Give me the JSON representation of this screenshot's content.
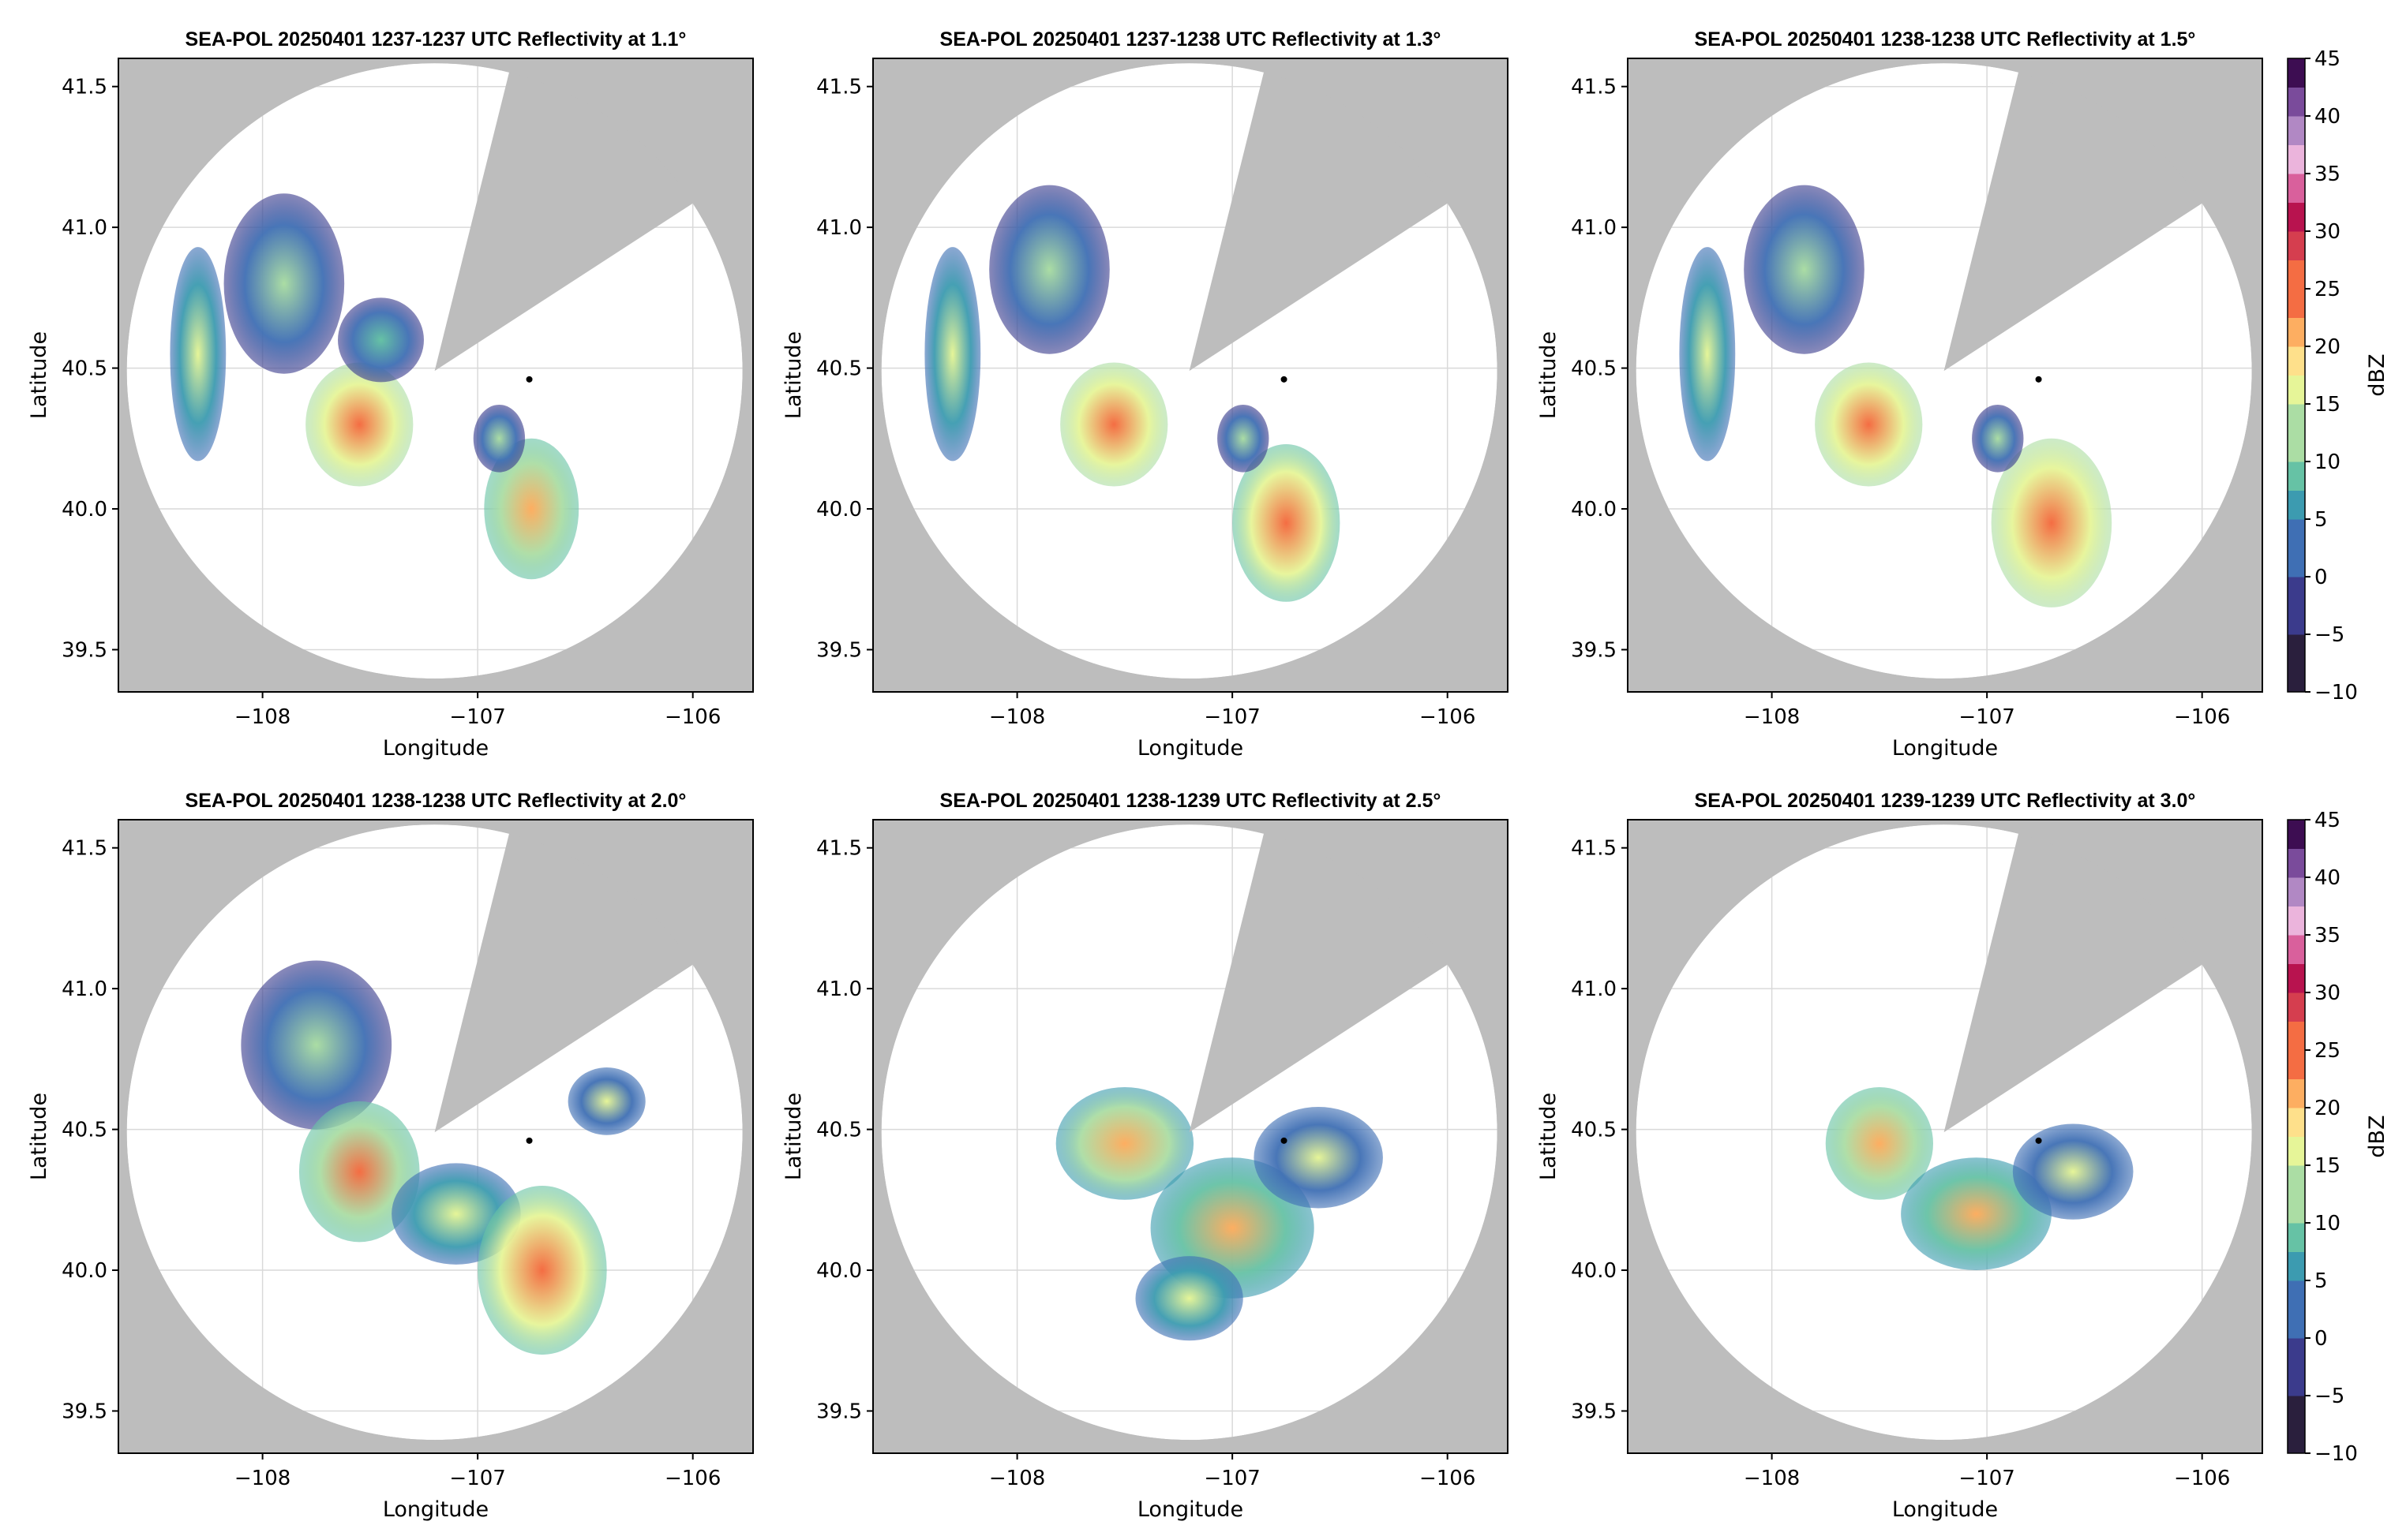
{
  "figure": {
    "colors": {
      "outside_coverage": "#bdbdbd",
      "coverage": "#ffffff",
      "grid": "#d9d9d9",
      "frame": "#000000",
      "radar_marker": "#000000"
    },
    "colormap_name": "Spectral_r (reversed spectral) with purple-pink top",
    "colorbar_stops": [
      {
        "v": -10,
        "c": "#000000"
      },
      {
        "v": -5,
        "c": "#2a1f3d"
      },
      {
        "v": 0,
        "c": "#3b3b8c"
      },
      {
        "v": 5,
        "c": "#3f6fb4"
      },
      {
        "v": 8,
        "c": "#3c9bb0"
      },
      {
        "v": 11,
        "c": "#66c2a5"
      },
      {
        "v": 14,
        "c": "#abdda4"
      },
      {
        "v": 17,
        "c": "#e6f598"
      },
      {
        "v": 20,
        "c": "#fee08b"
      },
      {
        "v": 23,
        "c": "#fdae61"
      },
      {
        "v": 27,
        "c": "#f46d43"
      },
      {
        "v": 30,
        "c": "#d53e4f"
      },
      {
        "v": 33,
        "c": "#b8134f"
      },
      {
        "v": 36,
        "c": "#d9609c"
      },
      {
        "v": 38,
        "c": "#ebb4dc"
      },
      {
        "v": 41,
        "c": "#b188c4"
      },
      {
        "v": 43,
        "c": "#7a4b9b"
      },
      {
        "v": 45,
        "c": "#3d0d52"
      }
    ]
  },
  "chart_data": [
    {
      "type": "heatmap",
      "title": "SEA-POL 20250401 1237-1237 UTC Reflectivity at 1.1°",
      "xlabel": "Longitude",
      "ylabel": "Latitude",
      "xlim": [
        -108.67,
        -105.72
      ],
      "ylim": [
        39.35,
        41.6
      ],
      "xticks": [
        -108,
        -107,
        -106
      ],
      "xtick_labels": [
        "−108",
        "−107",
        "−106"
      ],
      "yticks": [
        39.5,
        40.0,
        40.5,
        41.0,
        41.5
      ],
      "ytick_labels": [
        "39.5",
        "40.0",
        "40.5",
        "41.0",
        "41.5"
      ],
      "grid": true,
      "radar_site": {
        "lon": -107.2,
        "lat": 40.49
      },
      "marker_point": {
        "lon": -106.76,
        "lat": 40.46
      },
      "cells": [
        {
          "lon": -108.3,
          "lat": 40.55,
          "rx": 0.13,
          "ry": 0.38,
          "dbz": 16
        },
        {
          "lon": -107.9,
          "lat": 40.8,
          "rx": 0.28,
          "ry": 0.32,
          "dbz": 14
        },
        {
          "lon": -107.55,
          "lat": 40.3,
          "rx": 0.25,
          "ry": 0.22,
          "dbz": 26
        },
        {
          "lon": -107.45,
          "lat": 40.6,
          "rx": 0.2,
          "ry": 0.15,
          "dbz": 11
        },
        {
          "lon": -106.75,
          "lat": 40.0,
          "rx": 0.22,
          "ry": 0.25,
          "dbz": 23
        },
        {
          "lon": -106.9,
          "lat": 40.25,
          "rx": 0.12,
          "ry": 0.12,
          "dbz": 12
        }
      ],
      "colorbar": false
    },
    {
      "type": "heatmap",
      "title": "SEA-POL 20250401 1237-1238 UTC Reflectivity at 1.3°",
      "xlabel": "Longitude",
      "ylabel": "Latitude",
      "xlim": [
        -108.67,
        -105.72
      ],
      "ylim": [
        39.35,
        41.6
      ],
      "xticks": [
        -108,
        -107,
        -106
      ],
      "xtick_labels": [
        "−108",
        "−107",
        "−106"
      ],
      "yticks": [
        39.5,
        40.0,
        40.5,
        41.0,
        41.5
      ],
      "ytick_labels": [
        "39.5",
        "40.0",
        "40.5",
        "41.0",
        "41.5"
      ],
      "grid": true,
      "radar_site": {
        "lon": -107.2,
        "lat": 40.49
      },
      "marker_point": {
        "lon": -106.76,
        "lat": 40.46
      },
      "cells": [
        {
          "lon": -108.3,
          "lat": 40.55,
          "rx": 0.13,
          "ry": 0.38,
          "dbz": 16
        },
        {
          "lon": -107.85,
          "lat": 40.85,
          "rx": 0.28,
          "ry": 0.3,
          "dbz": 14
        },
        {
          "lon": -107.55,
          "lat": 40.3,
          "rx": 0.25,
          "ry": 0.22,
          "dbz": 27
        },
        {
          "lon": -106.75,
          "lat": 39.95,
          "rx": 0.25,
          "ry": 0.28,
          "dbz": 25
        },
        {
          "lon": -106.95,
          "lat": 40.25,
          "rx": 0.12,
          "ry": 0.12,
          "dbz": 12
        }
      ],
      "colorbar": false
    },
    {
      "type": "heatmap",
      "title": "SEA-POL 20250401 1238-1238 UTC Reflectivity at 1.5°",
      "xlabel": "Longitude",
      "ylabel": "Latitude",
      "xlim": [
        -108.67,
        -105.72
      ],
      "ylim": [
        39.35,
        41.6
      ],
      "xticks": [
        -108,
        -107,
        -106
      ],
      "xtick_labels": [
        "−108",
        "−107",
        "−106"
      ],
      "yticks": [
        39.5,
        40.0,
        40.5,
        41.0,
        41.5
      ],
      "ytick_labels": [
        "39.5",
        "40.0",
        "40.5",
        "41.0",
        "41.5"
      ],
      "grid": true,
      "radar_site": {
        "lon": -107.2,
        "lat": 40.49
      },
      "marker_point": {
        "lon": -106.76,
        "lat": 40.46
      },
      "cells": [
        {
          "lon": -108.3,
          "lat": 40.55,
          "rx": 0.13,
          "ry": 0.38,
          "dbz": 16
        },
        {
          "lon": -107.85,
          "lat": 40.85,
          "rx": 0.28,
          "ry": 0.3,
          "dbz": 14
        },
        {
          "lon": -107.55,
          "lat": 40.3,
          "rx": 0.25,
          "ry": 0.22,
          "dbz": 27
        },
        {
          "lon": -106.7,
          "lat": 39.95,
          "rx": 0.28,
          "ry": 0.3,
          "dbz": 26
        },
        {
          "lon": -106.95,
          "lat": 40.25,
          "rx": 0.12,
          "ry": 0.12,
          "dbz": 12
        }
      ],
      "colorbar": true
    },
    {
      "type": "heatmap",
      "title": "SEA-POL 20250401 1238-1238 UTC Reflectivity at 2.0°",
      "xlabel": "Longitude",
      "ylabel": "Latitude",
      "xlim": [
        -108.67,
        -105.72
      ],
      "ylim": [
        39.35,
        41.6
      ],
      "xticks": [
        -108,
        -107,
        -106
      ],
      "xtick_labels": [
        "−108",
        "−107",
        "−106"
      ],
      "yticks": [
        39.5,
        40.0,
        40.5,
        41.0,
        41.5
      ],
      "ytick_labels": [
        "39.5",
        "40.0",
        "40.5",
        "41.0",
        "41.5"
      ],
      "grid": true,
      "radar_site": {
        "lon": -107.2,
        "lat": 40.49
      },
      "marker_point": {
        "lon": -106.76,
        "lat": 40.46
      },
      "cells": [
        {
          "lon": -107.75,
          "lat": 40.8,
          "rx": 0.35,
          "ry": 0.3,
          "dbz": 13
        },
        {
          "lon": -107.55,
          "lat": 40.35,
          "rx": 0.28,
          "ry": 0.25,
          "dbz": 24
        },
        {
          "lon": -107.1,
          "lat": 40.2,
          "rx": 0.3,
          "ry": 0.18,
          "dbz": 17
        },
        {
          "lon": -106.7,
          "lat": 40.0,
          "rx": 0.3,
          "ry": 0.3,
          "dbz": 25
        },
        {
          "lon": -106.4,
          "lat": 40.6,
          "rx": 0.18,
          "ry": 0.12,
          "dbz": 15
        }
      ],
      "colorbar": false
    },
    {
      "type": "heatmap",
      "title": "SEA-POL 20250401 1238-1239 UTC Reflectivity at 2.5°",
      "xlabel": "Longitude",
      "ylabel": "Latitude",
      "xlim": [
        -108.67,
        -105.72
      ],
      "ylim": [
        39.35,
        41.6
      ],
      "xticks": [
        -108,
        -107,
        -106
      ],
      "xtick_labels": [
        "−108",
        "−107",
        "−106"
      ],
      "yticks": [
        39.5,
        40.0,
        40.5,
        41.0,
        41.5
      ],
      "ytick_labels": [
        "39.5",
        "40.0",
        "40.5",
        "41.0",
        "41.5"
      ],
      "grid": true,
      "radar_site": {
        "lon": -107.2,
        "lat": 40.49
      },
      "marker_point": {
        "lon": -106.76,
        "lat": 40.46
      },
      "cells": [
        {
          "lon": -107.5,
          "lat": 40.45,
          "rx": 0.32,
          "ry": 0.2,
          "dbz": 22
        },
        {
          "lon": -107.0,
          "lat": 40.15,
          "rx": 0.38,
          "ry": 0.25,
          "dbz": 21
        },
        {
          "lon": -106.6,
          "lat": 40.4,
          "rx": 0.3,
          "ry": 0.18,
          "dbz": 15
        },
        {
          "lon": -107.2,
          "lat": 39.9,
          "rx": 0.25,
          "ry": 0.15,
          "dbz": 16
        }
      ],
      "colorbar": false
    },
    {
      "type": "heatmap",
      "title": "SEA-POL 20250401 1239-1239 UTC Reflectivity at 3.0°",
      "xlabel": "Longitude",
      "ylabel": "Latitude",
      "xlim": [
        -108.67,
        -105.72
      ],
      "ylim": [
        39.35,
        41.6
      ],
      "xticks": [
        -108,
        -107,
        -106
      ],
      "xtick_labels": [
        "−108",
        "−107",
        "−106"
      ],
      "yticks": [
        39.5,
        40.0,
        40.5,
        41.0,
        41.5
      ],
      "ytick_labels": [
        "39.5",
        "40.0",
        "40.5",
        "41.0",
        "41.5"
      ],
      "grid": true,
      "radar_site": {
        "lon": -107.2,
        "lat": 40.49
      },
      "marker_point": {
        "lon": -106.76,
        "lat": 40.46
      },
      "cells": [
        {
          "lon": -107.5,
          "lat": 40.45,
          "rx": 0.25,
          "ry": 0.2,
          "dbz": 23
        },
        {
          "lon": -107.05,
          "lat": 40.2,
          "rx": 0.35,
          "ry": 0.2,
          "dbz": 21
        },
        {
          "lon": -106.6,
          "lat": 40.35,
          "rx": 0.28,
          "ry": 0.17,
          "dbz": 15
        }
      ],
      "colorbar": true
    }
  ],
  "colorbar": {
    "label": "dBZ",
    "ticks": [
      45,
      40,
      35,
      30,
      25,
      20,
      15,
      10,
      5,
      0,
      -5,
      -10
    ],
    "tick_labels": [
      "45",
      "40",
      "35",
      "30",
      "25",
      "20",
      "15",
      "10",
      "5",
      "0",
      "−5",
      "−10"
    ],
    "vmin": -10,
    "vmax": 45
  }
}
